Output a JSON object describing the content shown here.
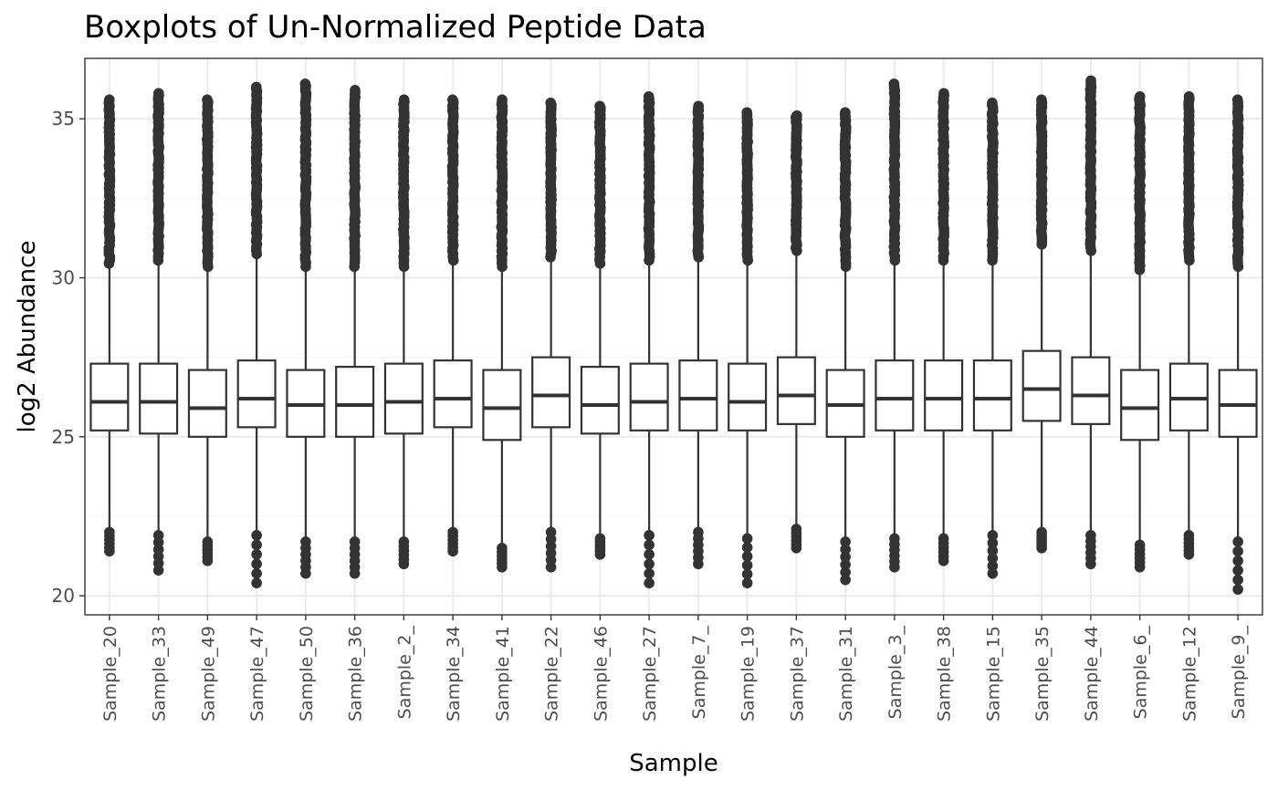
{
  "chart_data": {
    "type": "boxplot",
    "title": "Boxplots of Un-Normalized Peptide Data",
    "xlabel": "Sample",
    "ylabel": "log2 Abundance",
    "ylim": [
      19.4,
      36.9
    ],
    "yticks": [
      20,
      25,
      30,
      35
    ],
    "grid": true,
    "categories": [
      "Sample_20",
      "Sample_33",
      "Sample_49",
      "Sample_47",
      "Sample_50",
      "Sample_36",
      "Sample_2_",
      "Sample_34",
      "Sample_41",
      "Sample_22",
      "Sample_46",
      "Sample_27",
      "Sample_7_",
      "Sample_19",
      "Sample_37",
      "Sample_31",
      "Sample_3_",
      "Sample_38",
      "Sample_15",
      "Sample_35",
      "Sample_44",
      "Sample_6_",
      "Sample_12",
      "Sample_9_"
    ],
    "boxes": [
      {
        "q1": 25.2,
        "median": 26.1,
        "q3": 27.3,
        "whisker_low": 22.1,
        "whisker_high": 30.4,
        "outlier_low_min": 21.4,
        "outlier_high_max": 35.6
      },
      {
        "q1": 25.1,
        "median": 26.1,
        "q3": 27.3,
        "whisker_low": 22.0,
        "whisker_high": 30.5,
        "outlier_low_min": 20.8,
        "outlier_high_max": 35.8
      },
      {
        "q1": 25.0,
        "median": 25.9,
        "q3": 27.1,
        "whisker_low": 21.8,
        "whisker_high": 30.3,
        "outlier_low_min": 21.1,
        "outlier_high_max": 35.6
      },
      {
        "q1": 25.3,
        "median": 26.2,
        "q3": 27.4,
        "whisker_low": 22.0,
        "whisker_high": 30.7,
        "outlier_low_min": 20.4,
        "outlier_high_max": 36.0
      },
      {
        "q1": 25.0,
        "median": 26.0,
        "q3": 27.1,
        "whisker_low": 21.8,
        "whisker_high": 30.3,
        "outlier_low_min": 20.7,
        "outlier_high_max": 36.1
      },
      {
        "q1": 25.0,
        "median": 26.0,
        "q3": 27.2,
        "whisker_low": 21.8,
        "whisker_high": 30.3,
        "outlier_low_min": 20.7,
        "outlier_high_max": 35.9
      },
      {
        "q1": 25.1,
        "median": 26.1,
        "q3": 27.3,
        "whisker_low": 21.8,
        "whisker_high": 30.3,
        "outlier_low_min": 21.0,
        "outlier_high_max": 35.6
      },
      {
        "q1": 25.3,
        "median": 26.2,
        "q3": 27.4,
        "whisker_low": 22.1,
        "whisker_high": 30.5,
        "outlier_low_min": 21.4,
        "outlier_high_max": 35.6
      },
      {
        "q1": 24.9,
        "median": 25.9,
        "q3": 27.1,
        "whisker_low": 21.6,
        "whisker_high": 30.3,
        "outlier_low_min": 20.9,
        "outlier_high_max": 35.6
      },
      {
        "q1": 25.3,
        "median": 26.3,
        "q3": 27.5,
        "whisker_low": 22.1,
        "whisker_high": 30.6,
        "outlier_low_min": 20.9,
        "outlier_high_max": 35.5
      },
      {
        "q1": 25.1,
        "median": 26.0,
        "q3": 27.2,
        "whisker_low": 21.9,
        "whisker_high": 30.4,
        "outlier_low_min": 21.3,
        "outlier_high_max": 35.4
      },
      {
        "q1": 25.2,
        "median": 26.1,
        "q3": 27.3,
        "whisker_low": 22.0,
        "whisker_high": 30.5,
        "outlier_low_min": 20.4,
        "outlier_high_max": 35.7
      },
      {
        "q1": 25.2,
        "median": 26.2,
        "q3": 27.4,
        "whisker_low": 22.1,
        "whisker_high": 30.6,
        "outlier_low_min": 21.0,
        "outlier_high_max": 35.4
      },
      {
        "q1": 25.2,
        "median": 26.1,
        "q3": 27.3,
        "whisker_low": 21.9,
        "whisker_high": 30.5,
        "outlier_low_min": 20.4,
        "outlier_high_max": 35.2
      },
      {
        "q1": 25.4,
        "median": 26.3,
        "q3": 27.5,
        "whisker_low": 22.2,
        "whisker_high": 30.8,
        "outlier_low_min": 21.5,
        "outlier_high_max": 35.1
      },
      {
        "q1": 25.0,
        "median": 26.0,
        "q3": 27.1,
        "whisker_low": 21.8,
        "whisker_high": 30.3,
        "outlier_low_min": 20.5,
        "outlier_high_max": 35.2
      },
      {
        "q1": 25.2,
        "median": 26.2,
        "q3": 27.4,
        "whisker_low": 21.9,
        "whisker_high": 30.5,
        "outlier_low_min": 20.9,
        "outlier_high_max": 36.1
      },
      {
        "q1": 25.2,
        "median": 26.2,
        "q3": 27.4,
        "whisker_low": 21.9,
        "whisker_high": 30.5,
        "outlier_low_min": 21.1,
        "outlier_high_max": 35.8
      },
      {
        "q1": 25.2,
        "median": 26.2,
        "q3": 27.4,
        "whisker_low": 22.0,
        "whisker_high": 30.5,
        "outlier_low_min": 20.7,
        "outlier_high_max": 35.5
      },
      {
        "q1": 25.5,
        "median": 26.5,
        "q3": 27.7,
        "whisker_low": 22.1,
        "whisker_high": 31.0,
        "outlier_low_min": 21.5,
        "outlier_high_max": 35.6
      },
      {
        "q1": 25.4,
        "median": 26.3,
        "q3": 27.5,
        "whisker_low": 22.0,
        "whisker_high": 30.8,
        "outlier_low_min": 21.0,
        "outlier_high_max": 36.2
      },
      {
        "q1": 24.9,
        "median": 25.9,
        "q3": 27.1,
        "whisker_low": 21.7,
        "whisker_high": 30.2,
        "outlier_low_min": 20.9,
        "outlier_high_max": 35.7
      },
      {
        "q1": 25.2,
        "median": 26.2,
        "q3": 27.3,
        "whisker_low": 22.0,
        "whisker_high": 30.5,
        "outlier_low_min": 21.3,
        "outlier_high_max": 35.7
      },
      {
        "q1": 25.0,
        "median": 26.0,
        "q3": 27.1,
        "whisker_low": 21.8,
        "whisker_high": 30.3,
        "outlier_low_min": 20.2,
        "outlier_high_max": 35.6
      }
    ]
  },
  "colors": {
    "box_stroke": "#333333",
    "outlier": "#333333",
    "grid_major": "#ebebeb",
    "grid_minor": "#f5f5f5",
    "panel_border": "#333333",
    "tick_text": "#4d4d4d"
  }
}
